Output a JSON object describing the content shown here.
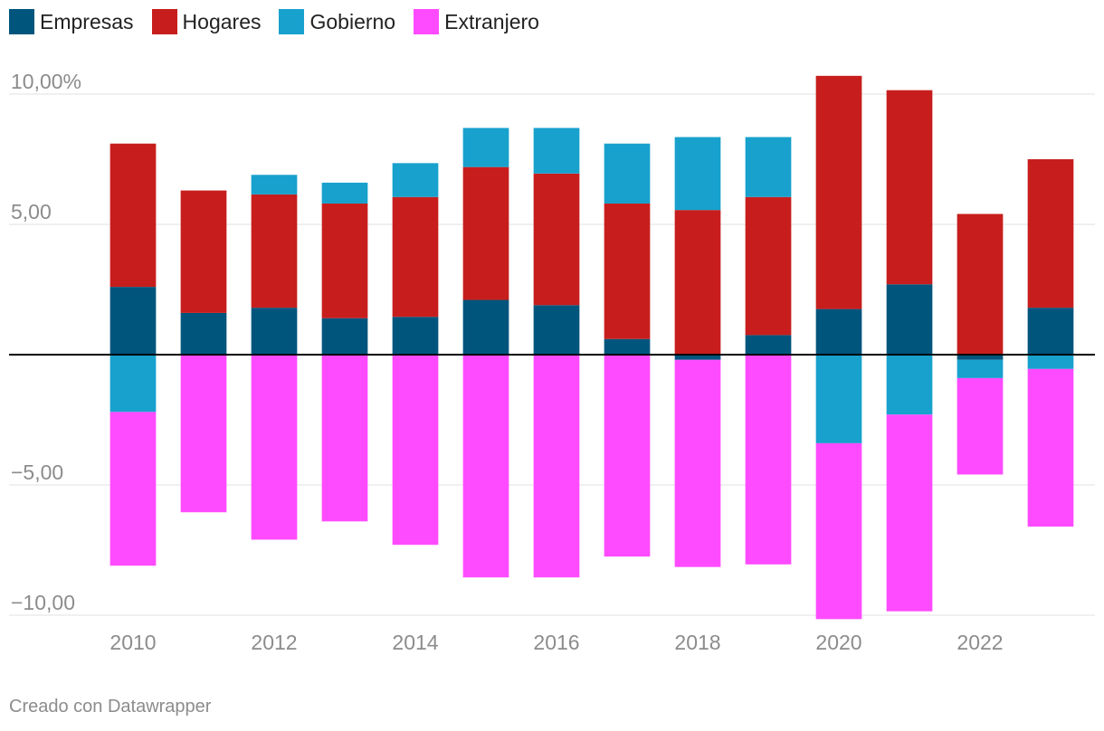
{
  "legend": {
    "items": [
      {
        "label": "Empresas",
        "color": "#00557d"
      },
      {
        "label": "Hogares",
        "color": "#c71e1d"
      },
      {
        "label": "Gobierno",
        "color": "#18a1cd"
      },
      {
        "label": "Extranjero",
        "color": "#ff4bff"
      }
    ]
  },
  "footer": {
    "credit": "Creado con Datawrapper"
  },
  "chart_data": {
    "type": "bar",
    "stacked": true,
    "categories": [
      "2010",
      "2011",
      "2012",
      "2013",
      "2014",
      "2015",
      "2016",
      "2017",
      "2018",
      "2019",
      "2020",
      "2021",
      "2022",
      "2023"
    ],
    "x_tick_labels": [
      "2010",
      "2012",
      "2014",
      "2016",
      "2018",
      "2020",
      "2022"
    ],
    "y_ticks": [
      10,
      5,
      0,
      -5,
      -10
    ],
    "y_tick_labels": [
      "10,00%",
      "5,00",
      "",
      "−5,00",
      "−10,00"
    ],
    "ylim": [
      -10.2,
      10.7
    ],
    "series": [
      {
        "name": "Empresas",
        "color": "#00557d",
        "values": [
          2.6,
          1.6,
          1.8,
          1.4,
          1.45,
          2.1,
          1.9,
          0.6,
          -0.2,
          0.75,
          1.75,
          2.7,
          -0.2,
          1.8
        ]
      },
      {
        "name": "Hogares",
        "color": "#c71e1d",
        "values": [
          5.5,
          4.7,
          4.35,
          4.4,
          4.6,
          5.1,
          5.05,
          5.2,
          5.55,
          5.3,
          8.95,
          7.45,
          5.4,
          5.7
        ]
      },
      {
        "name": "Gobierno",
        "color": "#18a1cd",
        "values": [
          -2.2,
          0,
          0.75,
          0.8,
          1.3,
          1.5,
          1.75,
          2.3,
          2.8,
          2.3,
          -3.4,
          -2.3,
          -0.7,
          -0.55
        ]
      },
      {
        "name": "Extranjero",
        "color": "#ff4bff",
        "values": [
          -5.9,
          -6.05,
          -7.1,
          -6.4,
          -7.3,
          -8.55,
          -8.55,
          -7.75,
          -7.95,
          -8.05,
          -6.75,
          -7.55,
          -3.7,
          -6.05
        ]
      }
    ]
  }
}
